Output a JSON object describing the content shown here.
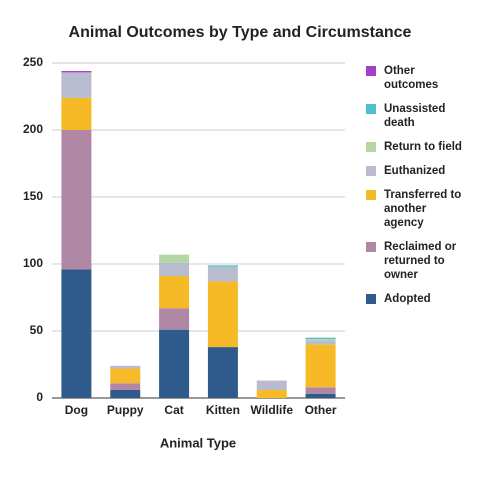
{
  "chart_data": {
    "type": "stacked_bar",
    "title": "Animal Outcomes by Type and Circumstance",
    "x_label": "Animal Type",
    "categories": [
      "Dog",
      "Puppy",
      "Cat",
      "Kitten",
      "Wildlife",
      "Other"
    ],
    "series": [
      {
        "name": "Adopted",
        "color": "#2e5b8c",
        "values": [
          96,
          6,
          51,
          38,
          0,
          3
        ]
      },
      {
        "name": "Reclaimed or returned to owner",
        "color": "#b088a6",
        "values": [
          104,
          5,
          16,
          0,
          0,
          5
        ]
      },
      {
        "name": "Transferred to another agency",
        "color": "#f5ba26",
        "values": [
          24,
          11,
          24,
          49,
          6,
          32
        ]
      },
      {
        "name": "Euthanized",
        "color": "#b9bccf",
        "values": [
          19,
          2,
          10,
          11,
          7,
          3
        ]
      },
      {
        "name": "Return to field",
        "color": "#b5d7a6",
        "values": [
          0,
          0,
          6,
          0,
          0,
          1
        ]
      },
      {
        "name": "Unassisted death",
        "color": "#4fc0cf",
        "values": [
          0,
          0,
          0,
          1,
          0,
          1
        ]
      },
      {
        "name": "Other outcomes",
        "color": "#a33fcb",
        "values": [
          1,
          0,
          0,
          0,
          0,
          0
        ]
      }
    ],
    "ylim": [
      0,
      250
    ],
    "yticks": [
      0,
      50,
      100,
      150,
      200,
      250
    ],
    "grid": true
  }
}
